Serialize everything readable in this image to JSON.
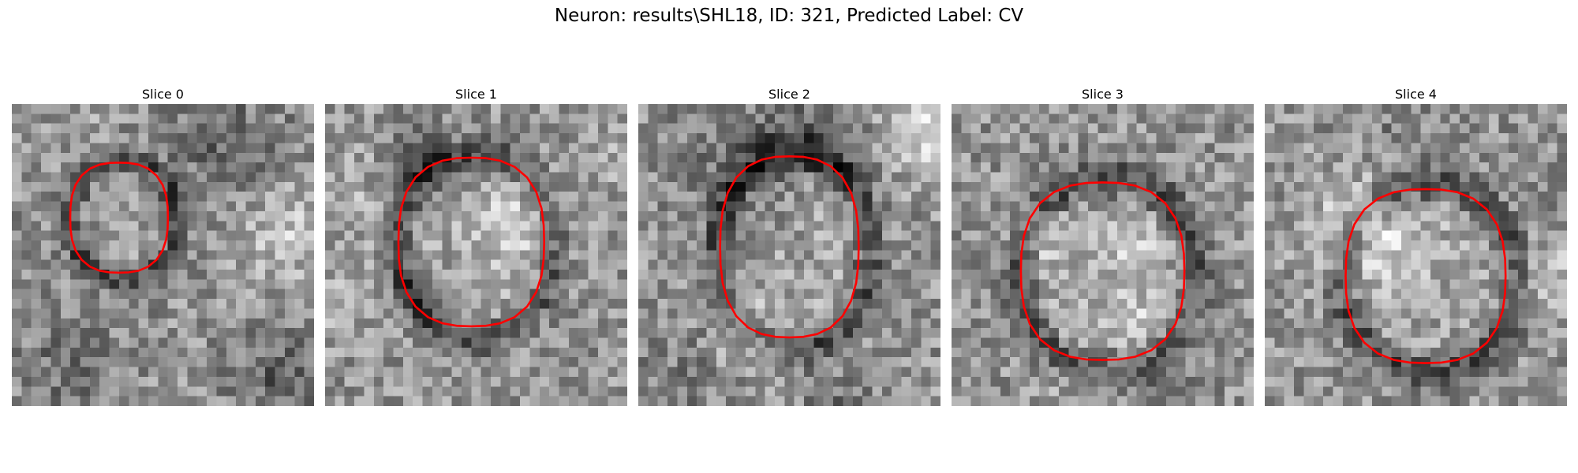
{
  "figure": {
    "suptitle": "Neuron: results\\SHL18, ID: 321, Predicted Label: CV",
    "colormap": "gray",
    "contour_color": "#ff0000"
  },
  "slices": [
    {
      "title": "Slice 0",
      "seed": 101
    },
    {
      "title": "Slice 1",
      "seed": 202
    },
    {
      "title": "Slice 2",
      "seed": 303
    },
    {
      "title": "Slice 3",
      "seed": 404
    },
    {
      "title": "Slice 4",
      "seed": 505
    }
  ]
}
